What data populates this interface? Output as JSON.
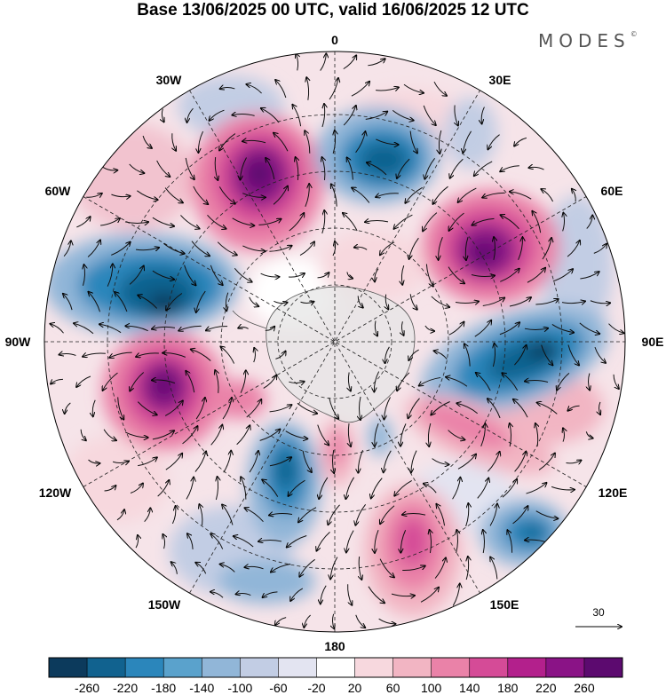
{
  "header": {
    "title": "Base 13/06/2025 00 UTC, valid 16/06/2025 12 UTC",
    "brand": "MODES",
    "brand_mark": "©"
  },
  "map": {
    "projection": "south-polar-stereographic",
    "meridian_labels": {
      "m0": "0",
      "m30e": "30E",
      "m60e": "60E",
      "m90e": "90E",
      "m120e": "120E",
      "m150e": "150E",
      "m180": "180",
      "m150w": "150W",
      "m120w": "120W",
      "m90w": "90W",
      "m60w": "60W",
      "m30w": "30W"
    },
    "vector_scale_label": "30",
    "graticule_style": "dashed",
    "field": {
      "positive_anomalies": [
        {
          "region": "near 30W-60W",
          "peak": 260
        },
        {
          "region": "near 60E",
          "peak": 260
        },
        {
          "region": "near 90W-120W",
          "peak": 260
        },
        {
          "region": "near 150E",
          "peak": 180
        },
        {
          "region": "near 120E",
          "peak": 140
        },
        {
          "region": "near 180 (south of pole)",
          "peak": 100
        }
      ],
      "negative_anomalies": [
        {
          "region": "near 0-30E",
          "peak": -220
        },
        {
          "region": "near 60W-90W",
          "peak": -260
        },
        {
          "region": "near 90E",
          "peak": -260
        },
        {
          "region": "near 120W-150W",
          "peak": -220
        },
        {
          "region": "near 120E-150E",
          "peak": -220
        }
      ]
    }
  },
  "colorbar": {
    "tick_labels": [
      "-260",
      "-220",
      "-180",
      "-140",
      "-100",
      "-60",
      "-20",
      "20",
      "60",
      "100",
      "140",
      "180",
      "220",
      "260"
    ],
    "colors": [
      "#0c3a5c",
      "#11628f",
      "#2b86bb",
      "#5aa2cc",
      "#91b6d8",
      "#c2cde4",
      "#e3e4f1",
      "#ffffff",
      "#f7d8de",
      "#f2b5c3",
      "#ea82a8",
      "#d54b97",
      "#b3208c",
      "#8a1386",
      "#5c0a6f"
    ]
  }
}
